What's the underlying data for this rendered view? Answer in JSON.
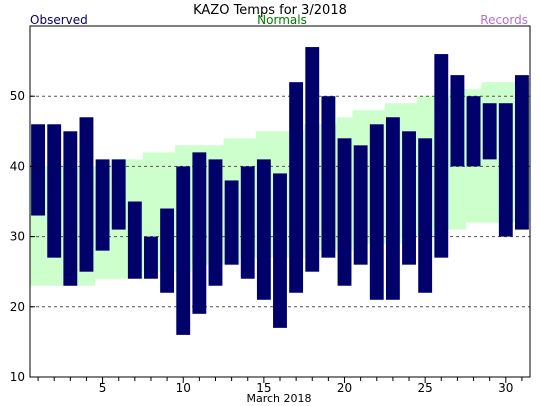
{
  "chart_data": {
    "type": "bar",
    "title": "KAZO Temps for 3/2018",
    "xlabel": "March 2018",
    "legend": [
      {
        "label": "Observed",
        "color": "#00006b"
      },
      {
        "label": "Normals",
        "color": "#007a00"
      },
      {
        "label": "Records",
        "color": "#b070d0"
      }
    ],
    "ylim": [
      10,
      60
    ],
    "yticks": [
      10,
      20,
      30,
      40,
      50
    ],
    "xlim": [
      0.5,
      31.5
    ],
    "xticks": [
      5,
      10,
      15,
      20,
      25,
      30
    ],
    "grid_y": [
      20,
      30,
      40,
      50
    ],
    "days": [
      1,
      2,
      3,
      4,
      5,
      6,
      7,
      8,
      9,
      10,
      11,
      12,
      13,
      14,
      15,
      16,
      17,
      18,
      19,
      20,
      21,
      22,
      23,
      24,
      25,
      26,
      27,
      28,
      29,
      30,
      31
    ],
    "observed": {
      "name": "Observed",
      "color": "#00006b",
      "high": [
        46,
        46,
        45,
        47,
        41,
        41,
        35,
        30,
        34,
        40,
        42,
        41,
        38,
        40,
        41,
        39,
        52,
        57,
        50,
        44,
        43,
        46,
        47,
        45,
        44,
        56,
        53,
        50,
        49,
        49,
        53
      ],
      "low": [
        33,
        27,
        23,
        25,
        28,
        31,
        24,
        24,
        22,
        16,
        19,
        23,
        26,
        24,
        21,
        17,
        22,
        25,
        27,
        23,
        26,
        21,
        21,
        26,
        22,
        27,
        40,
        40,
        41,
        30,
        31
      ]
    },
    "normals": {
      "name": "Normals",
      "color": "#ccffcc",
      "high": [
        40,
        40,
        40,
        40,
        40,
        41,
        41,
        42,
        42,
        43,
        43,
        43,
        44,
        44,
        45,
        45,
        45,
        46,
        46,
        47,
        48,
        48,
        49,
        49,
        50,
        50,
        51,
        51,
        52,
        52,
        52
      ],
      "low": [
        23,
        23,
        23,
        23,
        24,
        24,
        24,
        25,
        25,
        25,
        26,
        26,
        26,
        27,
        27,
        27,
        27,
        28,
        28,
        28,
        29,
        29,
        29,
        30,
        30,
        31,
        31,
        32,
        32,
        32,
        32
      ]
    },
    "colors": {
      "grid": "#555555",
      "axis": "#000000"
    }
  }
}
